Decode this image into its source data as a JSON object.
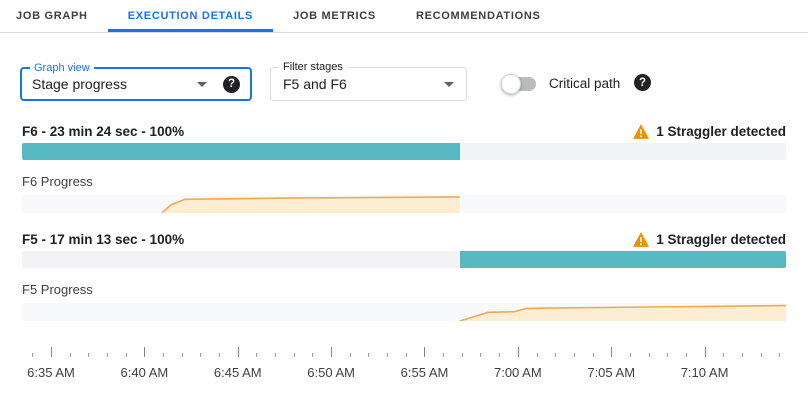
{
  "tabs": [
    {
      "label": "JOB GRAPH"
    },
    {
      "label": "EXECUTION DETAILS"
    },
    {
      "label": "JOB METRICS"
    },
    {
      "label": "RECOMMENDATIONS"
    }
  ],
  "active_tab_index": 1,
  "toolbar": {
    "graph_view_label": "Graph view",
    "graph_view_value": "Stage progress",
    "filter_label": "Filter stages",
    "filter_value": "F5 and F6",
    "critical_path_label": "Critical path",
    "critical_path_enabled": false
  },
  "icons": {
    "help": "?",
    "warning": "warning-triangle",
    "dropdown_caret": "chevron-down"
  },
  "colors": {
    "accent_blue": "#1a73e8",
    "bar_fill_teal": "#57bac3",
    "bar_bg": "#f1f3f4",
    "chart_bg": "#f8f9fa",
    "area_fill": "#fdeed3",
    "area_line": "#f0a956",
    "warning_orange": "#ee8f00"
  },
  "stages": [
    {
      "title": "F6 - 23 min 24 sec - 100%",
      "straggler_text": "1 Straggler detected",
      "progress_label": "F6 Progress",
      "bar_start_pct": 0,
      "bar_end_pct": 57.3,
      "area_points": [
        [
          18.3,
          100
        ],
        [
          19.5,
          55
        ],
        [
          21.3,
          24
        ],
        [
          35,
          17
        ],
        [
          57.3,
          11
        ]
      ],
      "area_close_pct": 57.3
    },
    {
      "title": "F5 - 17 min 13 sec - 100%",
      "straggler_text": "1 Straggler detected",
      "progress_label": "F5 Progress",
      "bar_start_pct": 57.3,
      "bar_end_pct": 100,
      "area_points": [
        [
          57.3,
          100
        ],
        [
          61,
          52
        ],
        [
          64.5,
          48
        ],
        [
          66,
          30
        ],
        [
          69,
          28
        ],
        [
          100,
          14
        ]
      ],
      "area_close_pct": 100
    }
  ],
  "time_axis": {
    "labels": [
      "6:35 AM",
      "6:40 AM",
      "6:45 AM",
      "6:50 AM",
      "6:55 AM",
      "7:00 AM",
      "7:05 AM",
      "7:10 AM"
    ],
    "first_label_pct": 3.8,
    "label_step_pct": 12.22,
    "minors_per_major": 5
  },
  "chart_data": [
    {
      "type": "area",
      "name": "F6 Progress",
      "x": [
        "6:41 AM",
        "6:42 AM",
        "6:43 AM",
        "6:50 AM",
        "6:57 AM"
      ],
      "y": [
        0,
        50,
        80,
        88,
        95
      ],
      "ylabel": "progress"
    },
    {
      "type": "area",
      "name": "F5 Progress",
      "x": [
        "6:57 AM",
        "6:59 AM",
        "7:00 AM",
        "7:01 AM",
        "7:14 AM"
      ],
      "y": [
        0,
        52,
        55,
        72,
        90
      ],
      "ylabel": "progress"
    }
  ]
}
